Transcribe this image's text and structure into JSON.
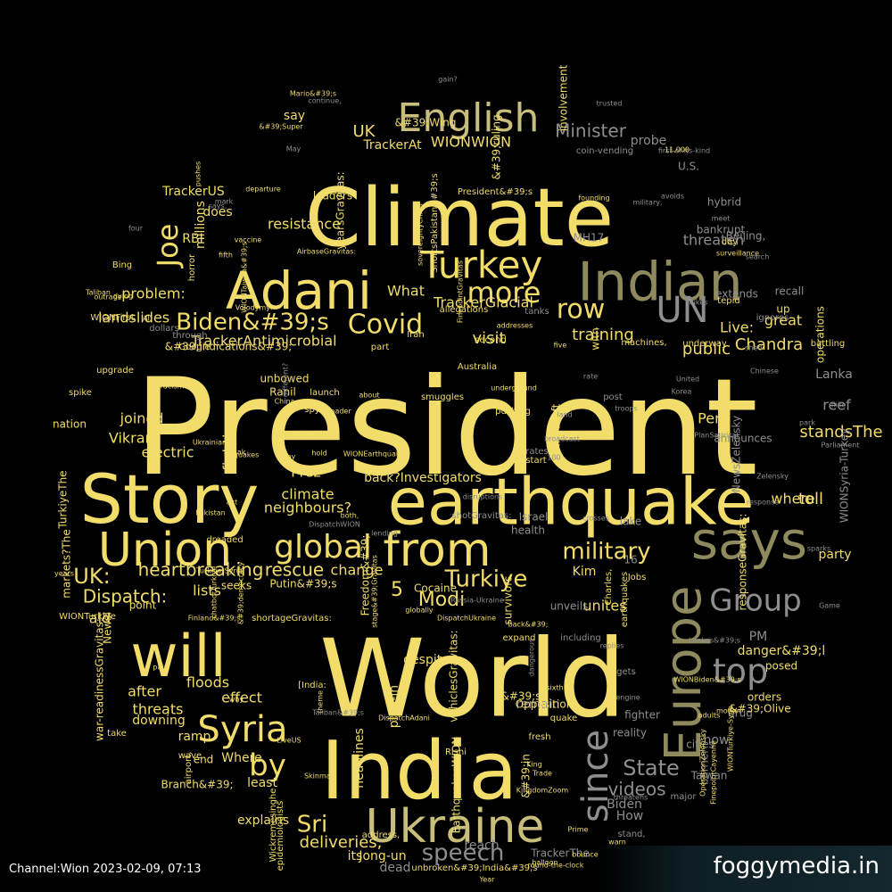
{
  "footer": {
    "channel": "Channel:Wion 2023-02-09, 07:13",
    "site": "foggymedia.in"
  },
  "colors": {
    "gold": "#f2dc6a",
    "pale": "#c9bd7c",
    "olive": "#8f8a5e",
    "grey": "#8e8e8e",
    "dim": "#6a6a6a"
  },
  "words": [
    [
      "President",
      "gold",
      0
    ],
    [
      "World",
      "gold",
      0
    ],
    [
      "Climate",
      "gold",
      0
    ],
    [
      "India",
      "gold",
      0
    ],
    [
      "earthquake",
      "gold",
      0
    ],
    [
      "Story",
      "gold",
      0
    ],
    [
      "says",
      "olive",
      0
    ],
    [
      "Indian",
      "olive",
      0
    ],
    [
      "Adani",
      "gold",
      0
    ],
    [
      "Union",
      "gold",
      0
    ],
    [
      "from",
      "gold",
      0
    ],
    [
      "will",
      "gold",
      0
    ],
    [
      "Europe",
      "olive",
      1
    ],
    [
      "Ukraine",
      "pale",
      0
    ],
    [
      "English",
      "pale",
      0
    ],
    [
      "Turkey",
      "gold",
      0
    ],
    [
      "Syria",
      "gold",
      0
    ],
    [
      "since",
      "grey",
      1
    ],
    [
      "top",
      "grey",
      0
    ],
    [
      "UN",
      "grey",
      0
    ],
    [
      "global",
      "gold",
      0
    ],
    [
      "more",
      "gold",
      0
    ],
    [
      "row",
      "gold",
      0
    ],
    [
      "Joe",
      "gold",
      1
    ],
    [
      "by",
      "gold",
      0
    ],
    [
      "Group",
      "grey",
      0
    ],
    [
      "Covid",
      "gold",
      0
    ],
    [
      "Biden&#39;s",
      "gold",
      0
    ],
    [
      "military",
      "gold",
      0
    ],
    [
      "speech",
      "grey",
      0
    ],
    [
      "Turkiye",
      "gold",
      0
    ],
    [
      "UK:",
      "gold",
      0
    ],
    [
      "Sri",
      "gold",
      0
    ],
    [
      "State",
      "grey",
      0
    ],
    [
      "heartbreaking",
      "gold",
      0
    ],
    [
      "rescue",
      "gold",
      0
    ],
    [
      "Dispatch:",
      "gold",
      0
    ],
    [
      "Modi",
      "gold",
      0
    ],
    [
      "videos",
      "grey",
      0
    ],
    [
      "5",
      "gold",
      0
    ],
    [
      "Minister",
      "grey",
      0
    ],
    [
      "UK",
      "gold",
      0
    ],
    [
      "training",
      "gold",
      0
    ],
    [
      "visit",
      "gold",
      0
    ],
    [
      "public",
      "gold",
      0
    ],
    [
      "Live:",
      "gold",
      0
    ],
    [
      "Chandra",
      "gold",
      0
    ],
    [
      "threaten",
      "grey",
      0
    ],
    [
      "Peru",
      "gold",
      0
    ],
    [
      "toll",
      "gold",
      0
    ],
    [
      "where",
      "gold",
      0
    ],
    [
      "great",
      "gold",
      0
    ],
    [
      "reef",
      "grey",
      0
    ],
    [
      "WIONWION",
      "gold",
      0
    ],
    [
      "TrackerGlacial",
      "gold",
      0
    ],
    [
      "TrackerAntimicrobial",
      "gold",
      0
    ],
    [
      "resistance",
      "gold",
      0
    ],
    [
      "What",
      "gold",
      0
    ],
    [
      "landslides",
      "gold",
      0
    ],
    [
      "problem:",
      "gold",
      0
    ],
    [
      "joined",
      "gold",
      0
    ],
    [
      "Vikram",
      "gold",
      0
    ],
    [
      "electric",
      "gold",
      0
    ],
    [
      "fighting",
      "gold",
      1
    ],
    [
      "Prez",
      "gold",
      0
    ],
    [
      "climate",
      "gold",
      0
    ],
    [
      "neighbours?",
      "gold",
      0
    ],
    [
      "change",
      "gold",
      0
    ],
    [
      "lists",
      "gold",
      0
    ],
    [
      "ald",
      "gold",
      0
    ],
    [
      "after",
      "gold",
      0
    ],
    [
      "floods",
      "gold",
      0
    ],
    [
      "effect",
      "gold",
      0
    ],
    [
      "threats",
      "gold",
      0
    ],
    [
      "downing",
      "gold",
      0
    ],
    [
      "ramp",
      "gold",
      0
    ],
    [
      "Where",
      "gold",
      0
    ],
    [
      "least",
      "gold",
      0
    ],
    [
      "explains",
      "gold",
      0
    ],
    [
      "deliveries,",
      "gold",
      0
    ],
    [
      "its",
      "gold",
      0
    ],
    [
      "Jong-un",
      "gold",
      0
    ],
    [
      "dead",
      "grey",
      0
    ],
    [
      "reach",
      "grey",
      0
    ],
    [
      "TrackerThe",
      "grey",
      0
    ],
    [
      "Biden",
      "grey",
      0
    ],
    [
      "How",
      "grey",
      0
    ],
    [
      "stand,",
      "grey",
      0
    ],
    [
      "reality",
      "grey",
      0
    ],
    [
      "fighter",
      "grey",
      0
    ],
    [
      "how",
      "grey",
      0
    ],
    [
      "drug",
      "grey",
      0
    ],
    [
      "barrier",
      "grey",
      1
    ],
    [
      "Taiwan",
      "grey",
      0
    ],
    [
      "major",
      "grey",
      0
    ],
    [
      "cities",
      "grey",
      0
    ],
    [
      "PM",
      "grey",
      0
    ],
    [
      "danger&#39;l",
      "gold",
      0
    ],
    [
      "posed",
      "gold",
      0
    ],
    [
      "orders",
      "gold",
      0
    ],
    [
      "&#39;Olive",
      "gold",
      0
    ],
    [
      "party",
      "gold",
      0
    ],
    [
      "standsThe",
      "gold",
      0
    ],
    [
      "Lanka",
      "grey",
      0
    ],
    [
      "operations",
      "gold",
      1
    ],
    [
      "battling",
      "gold",
      0
    ],
    [
      "up",
      "gold",
      0
    ],
    [
      "recall",
      "grey",
      0
    ],
    [
      "extends",
      "grey",
      0
    ],
    [
      "Beijing,",
      "grey",
      0
    ],
    [
      "hybrid",
      "grey",
      0
    ],
    [
      "bankrupt",
      "grey",
      0
    ],
    [
      "U.S.",
      "grey",
      0
    ],
    [
      "probe",
      "grey",
      0
    ],
    [
      "lake",
      "grey",
      0
    ],
    [
      "health",
      "grey",
      0
    ],
    [
      "Israel",
      "grey",
      0
    ],
    [
      "Kim",
      "gold",
      0
    ],
    [
      "unites",
      "gold",
      0
    ],
    [
      "16",
      "grey",
      0
    ],
    [
      "with",
      "gold",
      1
    ],
    [
      "remain",
      "grey",
      0
    ],
    [
      "Opposition",
      "gold",
      0
    ],
    [
      "despite",
      "gold",
      0
    ],
    [
      "headlines",
      "gold",
      1
    ],
    [
      "plug-in",
      "gold",
      1
    ],
    [
      "back?Investigators",
      "gold",
      0
    ],
    [
      "Cocaine",
      "gold",
      0
    ],
    [
      "survivors",
      "gold",
      1
    ],
    [
      "Putin&#39;s",
      "gold",
      0
    ],
    [
      "seeks",
      "gold",
      0
    ],
    [
      "say",
      "gold",
      0
    ],
    [
      "TrackerAt",
      "gold",
      0
    ],
    [
      "TrackerUS",
      "gold",
      0
    ],
    [
      "does",
      "gold",
      0
    ],
    [
      "millions",
      "gold",
      1
    ],
    [
      "RBI",
      "gold",
      0
    ],
    [
      "nation",
      "gold",
      0
    ],
    [
      "TurkiyeThe",
      "gold",
      1
    ],
    [
      "markets?The",
      "gold",
      1
    ],
    [
      "war-readinessGravitas:",
      "gold",
      1
    ],
    [
      "Newsl",
      "gold",
      1
    ],
    [
      "end",
      "gold",
      0
    ],
    [
      "Branch&#39;",
      "gold",
      0
    ],
    [
      "point",
      "gold",
      0
    ],
    [
      "&#39;Wing",
      "gold",
      0
    ],
    [
      "leaders",
      "gold",
      0
    ],
    [
      "yearsGravitas:",
      "gold",
      1
    ],
    [
      "&#39;ruling",
      "gold",
      1
    ],
    [
      "&#39;indications&#39;",
      "gold",
      0
    ],
    [
      "unbowed",
      "gold",
      0
    ],
    [
      "Ranil",
      "gold",
      0
    ],
    [
      "&#39;s",
      "gold",
      0
    ],
    [
      "&#39;in",
      "gold",
      1
    ],
    [
      "EarthquakesWION",
      "gold",
      1
    ],
    [
      "vehiclesGravitas:",
      "gold",
      1
    ],
    [
      "Microsoft",
      "gold",
      1
    ],
    [
      "involvement",
      "gold",
      1
    ],
    [
      "MH17",
      "grey",
      0
    ],
    [
      "coin-vending",
      "grey",
      0
    ],
    [
      "first-of-its-kind",
      "grey",
      0
    ],
    [
      "unveils",
      "grey",
      0
    ],
    [
      "announces",
      "grey",
      0
    ],
    [
      "WIONSyria-Turkey",
      "grey",
      1
    ],
    [
      "NewsZelensky",
      "grey",
      1
    ],
    [
      "responseGravitas:",
      "gold",
      1
    ],
    [
      "Mario&#39;s",
      "gold",
      0
    ],
    [
      "&#39;Super",
      "gold",
      0
    ],
    [
      "departure",
      "gold",
      0
    ],
    [
      "AirbaseGravitas:",
      "gold",
      0
    ],
    [
      "Australia",
      "gold",
      0
    ],
    [
      "smuggles",
      "gold",
      0
    ],
    [
      "Freedom&#39;",
      "gold",
      1
    ],
    [
      "stage&#39;Gravitas",
      "gold",
      1
    ],
    [
      "shortageGravitas:",
      "gold",
      0
    ],
    [
      "[India:",
      "gold",
      0
    ],
    [
      "theme",
      "gold",
      1
    ],
    [
      "launch",
      "gold",
      0
    ],
    [
      "spy",
      "gold",
      0
    ],
    [
      "horror",
      "gold",
      1
    ],
    [
      "WIONFirst",
      "gold",
      0
    ],
    [
      "pushes",
      "gold",
      1
    ],
    [
      "vaccine",
      "gold",
      0
    ],
    [
      "fifth",
      "gold",
      0
    ],
    [
      "Bing",
      "gold",
      0
    ],
    [
      "Taliban",
      "gold",
      0
    ],
    [
      "allegations",
      "gold",
      0
    ],
    [
      "Iran",
      "gold",
      0
    ],
    [
      "second",
      "gold",
      0
    ],
    [
      "pushing",
      "gold",
      0
    ],
    [
      "underground",
      "gold",
      0
    ],
    [
      "start",
      "gold",
      0
    ],
    [
      "expand",
      "gold",
      0
    ],
    [
      "dangerous",
      "grey",
      1
    ],
    [
      "sixth",
      "gold",
      0
    ],
    [
      "Rishi",
      "gold",
      0
    ],
    [
      "King",
      "gold",
      0
    ],
    [
      "quake",
      "gold",
      0
    ],
    [
      "Charles,",
      "gold",
      1
    ],
    [
      "Jobs",
      "gold",
      0
    ],
    [
      "earthquakes",
      "gold",
      1
    ],
    [
      "gets",
      "grey",
      0
    ],
    [
      "engine",
      "grey",
      0
    ],
    [
      "threatens",
      "grey",
      0
    ],
    [
      "tanks",
      "grey",
      0
    ],
    [
      "dollars",
      "grey",
      0
    ],
    [
      "through",
      "grey",
      0
    ],
    [
      "Google",
      "gold",
      0
    ],
    [
      "AI",
      "gold",
      0
    ],
    [
      "upgrade",
      "gold",
      0
    ],
    [
      "spike",
      "gold",
      0
    ],
    [
      "dreaded",
      "gold",
      0
    ],
    [
      "wave",
      "gold",
      0
    ],
    [
      "airport,",
      "gold",
      1
    ],
    [
      "epidemiologists",
      "gold",
      1
    ],
    [
      "Wickremesinghe",
      "gold",
      1
    ],
    [
      "address,",
      "gold",
      0
    ],
    [
      "machines,",
      "gold",
      0
    ],
    [
      "underway",
      "gold",
      0
    ],
    [
      "tepid",
      "gold",
      0
    ],
    [
      "day",
      "gold",
      0
    ],
    [
      "surveillance",
      "gold",
      0
    ],
    [
      "search",
      "grey",
      0
    ],
    [
      "ignores",
      "grey",
      0
    ],
    [
      "hike",
      "grey",
      0
    ],
    [
      "park",
      "grey",
      0
    ],
    [
      "Parliament",
      "grey",
      0
    ],
    [
      "sparks",
      "grey",
      0
    ],
    [
      "response",
      "grey",
      0
    ],
    [
      "Game",
      "grey",
      0
    ],
    [
      "rate",
      "grey",
      0
    ],
    [
      "post",
      "grey",
      0
    ],
    [
      "troops",
      "grey",
      0
    ],
    [
      "rates",
      "grey",
      0
    ],
    [
      "100",
      "grey",
      0
    ],
    [
      "crosses",
      "grey",
      0
    ],
    [
      "lending",
      "grey",
      0
    ],
    [
      "disruptions",
      "grey",
      0
    ],
    [
      "shotGravitas:",
      "grey",
      0
    ],
    [
      "Russia-Ukraine",
      "grey",
      0
    ],
    [
      "including",
      "grey",
      0
    ],
    [
      "fresh",
      "gold",
      0
    ],
    [
      "Trade",
      "gold",
      0
    ],
    [
      "KingdomZoom",
      "gold",
      0
    ],
    [
      "unbroken&#39;India&#39;s",
      "gold",
      0
    ],
    [
      "WIONTaiwan&#39;s",
      "gold",
      1
    ],
    [
      "FinepointGravitas",
      "gold",
      1
    ],
    [
      "sovereigntyChina",
      "gold",
      1
    ],
    [
      "ShortsPakistan&#39;s",
      "gold",
      1
    ],
    [
      "President&#39;s",
      "gold",
      0
    ],
    [
      "WIONEarthquake",
      "gold",
      0
    ],
    [
      "Sunak",
      "gold",
      0
    ],
    [
      "quakes",
      "gold",
      0
    ],
    [
      "both,",
      "gold",
      0
    ],
    [
      "chatbotTurkiye",
      "gold",
      1
    ],
    [
      "&#39;democracy",
      "gold",
      1
    ],
    [
      "DispatchUkraine",
      "gold",
      0
    ],
    [
      "DispatchAdani",
      "gold",
      0
    ],
    [
      "LiveUS",
      "gold",
      0
    ],
    [
      "Skinmart",
      "gold",
      0
    ],
    [
      "WIONTurkiye",
      "gold",
      0
    ],
    [
      "Pakistan",
      "gold",
      0
    ],
    [
      "act",
      "gold",
      0
    ],
    [
      "take",
      "gold",
      0
    ],
    [
      "part",
      "gold",
      0
    ],
    [
      "about",
      "gold",
      0
    ],
    [
      "China",
      "gold",
      0
    ],
    [
      "hold",
      "gold",
      0
    ],
    [
      "broader",
      "gold",
      0
    ],
    [
      "five",
      "gold",
      0
    ],
    [
      "addresses",
      "gold",
      0
    ],
    [
      "round-the-clock",
      "gold",
      0
    ],
    [
      "bounce",
      "gold",
      0
    ],
    [
      "balloon",
      "gold",
      0
    ],
    [
      "warn",
      "gold",
      0
    ],
    [
      "Prime",
      "gold",
      0
    ],
    [
      "Year",
      "gold",
      0
    ],
    [
      "11,000",
      "gold",
      0
    ],
    [
      "founding",
      "gold",
      0
    ],
    [
      "avoids",
      "grey",
      0
    ],
    [
      "military,",
      "grey",
      0
    ],
    [
      "meet",
      "grey",
      0
    ],
    [
      "hikes",
      "grey",
      0
    ],
    [
      "shed",
      "grey",
      0
    ],
    [
      "United",
      "grey",
      0
    ],
    [
      "Chinese",
      "grey",
      0
    ],
    [
      "Korea",
      "grey",
      0
    ],
    [
      "land",
      "grey",
      0
    ],
    [
      "broadcast",
      "grey",
      0
    ],
    [
      "PlanSatirical",
      "grey",
      0
    ],
    [
      "Zelensky",
      "grey",
      0
    ],
    [
      "Lankas&#39;s",
      "grey",
      0
    ],
    [
      "replies",
      "grey",
      0
    ],
    [
      "trusted",
      "grey",
      0
    ],
    [
      "gain?",
      "grey",
      0
    ],
    [
      "four",
      "grey",
      0
    ],
    [
      "mark",
      "grey",
      0
    ],
    [
      "says,",
      "grey",
      0
    ],
    [
      "May",
      "grey",
      0
    ],
    [
      "continue,",
      "grey",
      0
    ],
    [
      "different?",
      "grey",
      1
    ],
    [
      "DispatchWION",
      "grey",
      0
    ],
    [
      "Taliban&#39;s",
      "grey",
      0
    ],
    [
      "why",
      "gold",
      0
    ],
    [
      "pain",
      "gold",
      0
    ],
    [
      "years",
      "gold",
      0
    ],
    [
      "outrage",
      "gold",
      0
    ],
    [
      "dying",
      "gold",
      0
    ],
    [
      "Volodymyr",
      "gold",
      0
    ],
    [
      "Ukrainian",
      "gold",
      0
    ],
    [
      "Finland&#39;s",
      "gold",
      0
    ],
    [
      "Turkiye-Syria",
      "gold",
      0
    ],
    [
      "racism",
      "gold",
      0
    ],
    [
      "army",
      "gold",
      0
    ],
    [
      "globally",
      "gold",
      0
    ],
    [
      "back&#39;",
      "gold",
      0
    ],
    [
      "motion",
      "gold",
      0
    ],
    [
      "adults",
      "gold",
      0
    ],
    [
      "WIONTurkiye-Syria",
      "gold",
      1
    ],
    [
      "OperationZelensky",
      "gold",
      1
    ],
    [
      "FinepointCayenne",
      "gold",
      1
    ],
    [
      "WIONBiden&#39;s",
      "gold",
      0
    ],
    [
      "parade",
      "gold",
      0
    ],
    [
      "rates",
      "gold",
      0
    ],
    [
      "12",
      "grey",
      0
    ],
    [
      "talks",
      "grey",
      0
    ],
    [
      "investigation",
      "grey",
      0
    ],
    [
      "8,000",
      "grey",
      1
    ],
    [
      "neals",
      "grey",
      0
    ],
    [
      "first",
      "grey",
      0
    ],
    [
      "thanksYounger",
      "grey",
      0
    ]
  ]
}
